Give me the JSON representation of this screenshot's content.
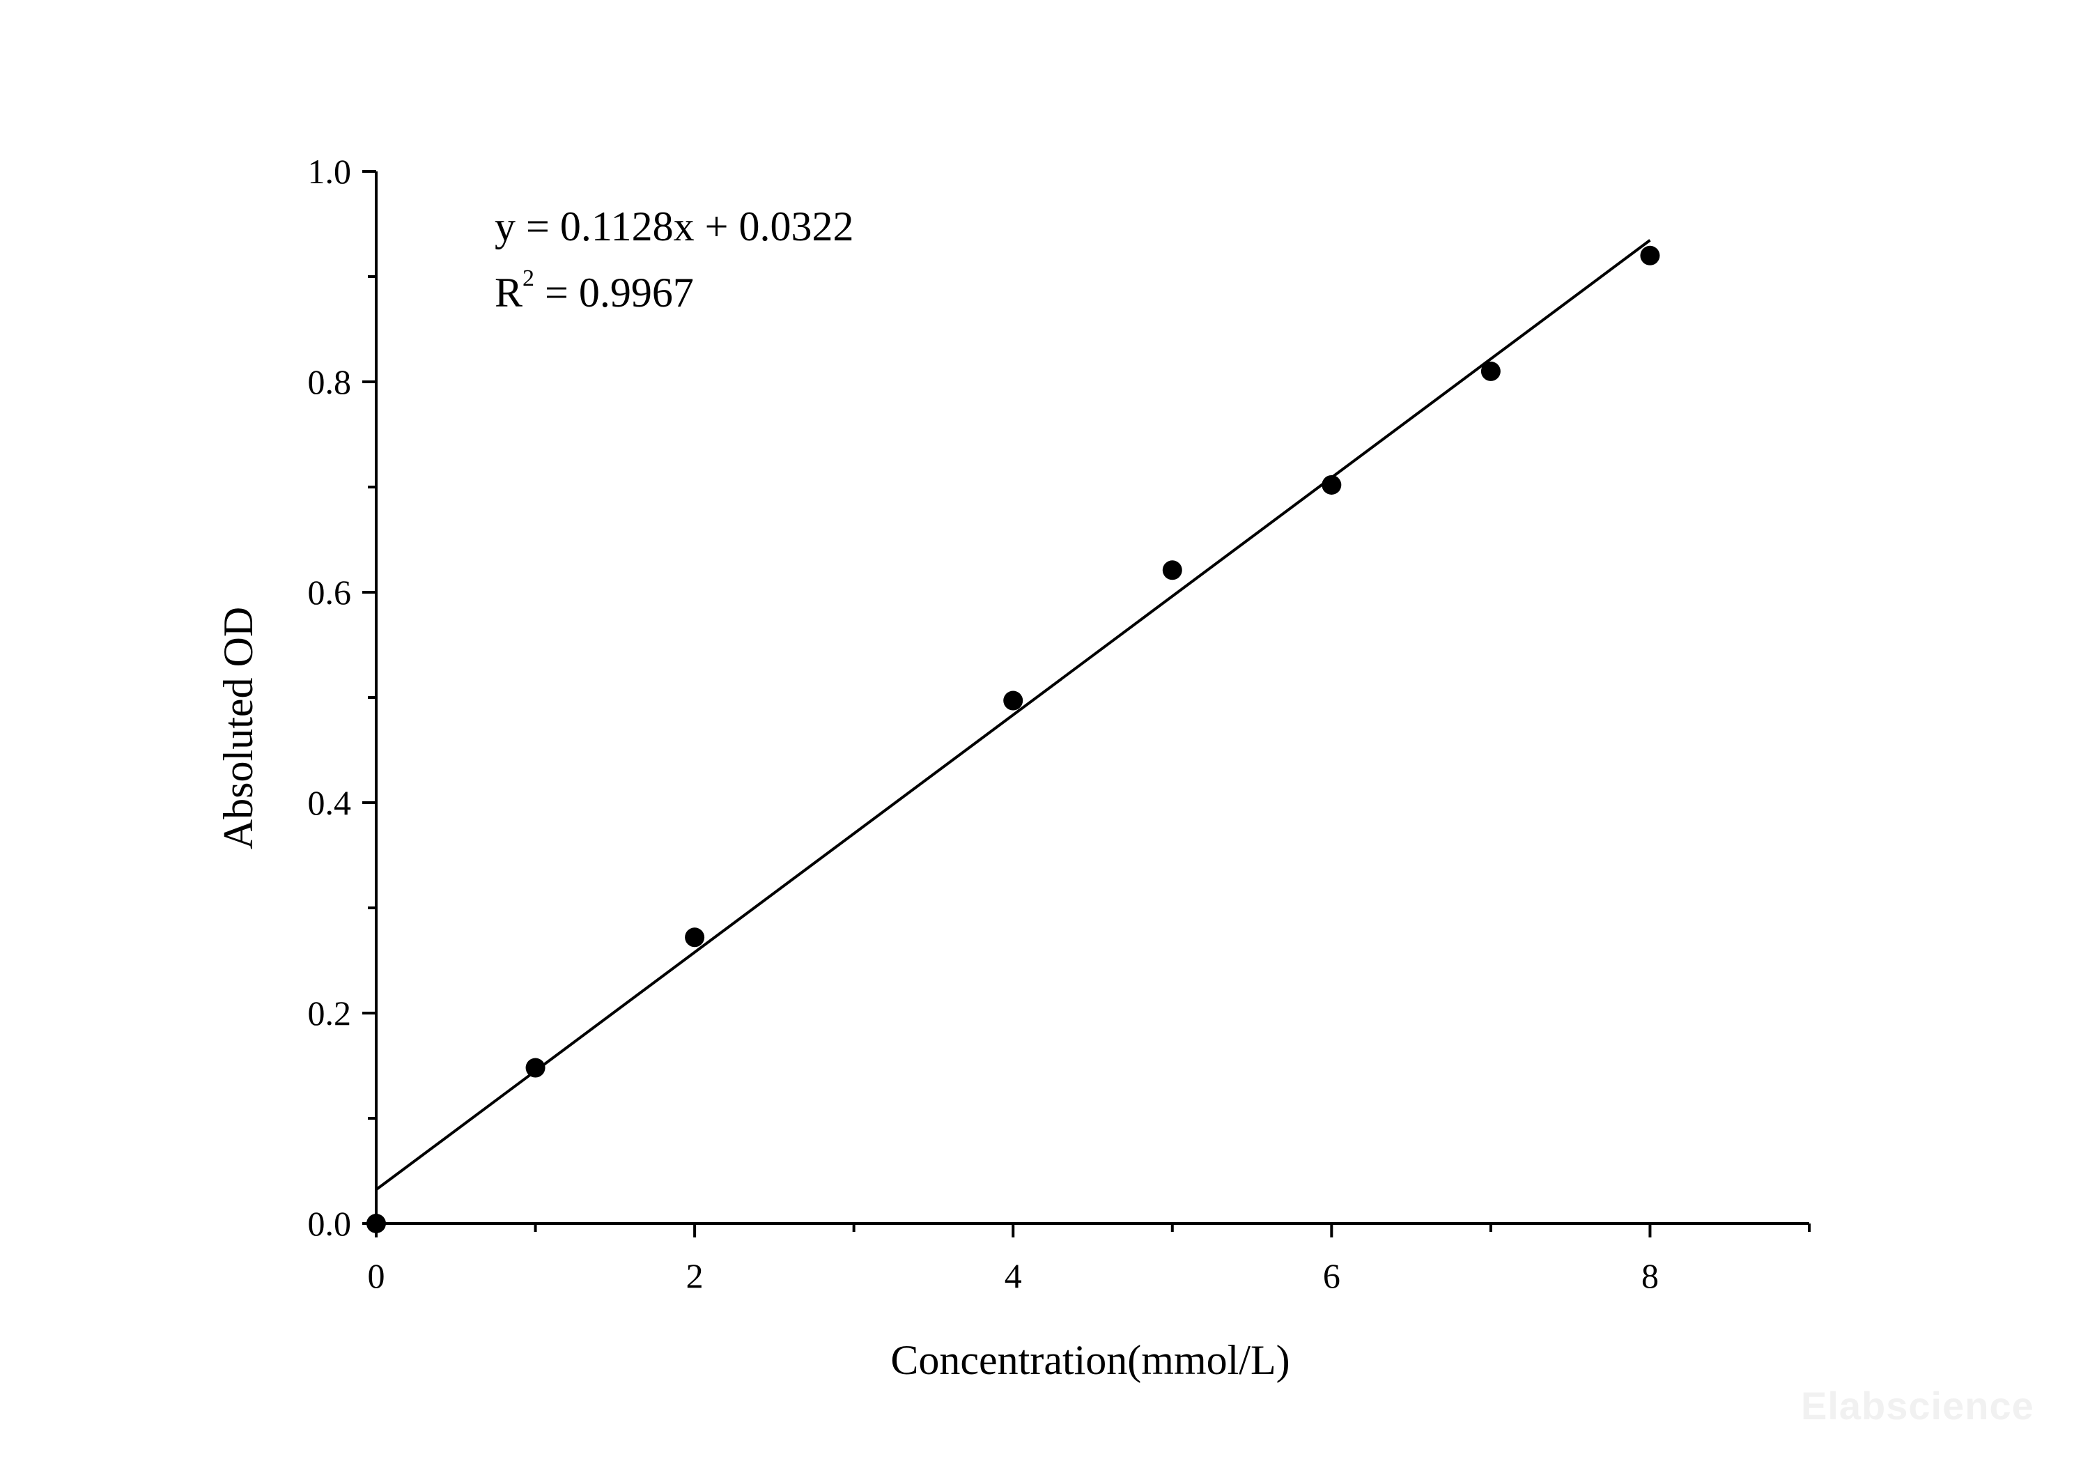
{
  "chart_data": {
    "type": "scatter",
    "xlabel": "Concentration(mmol/L)",
    "ylabel": "Absoluted OD",
    "xlim": [
      0,
      9
    ],
    "ylim": [
      0,
      1.0
    ],
    "x_ticks": [
      "0",
      "2",
      "4",
      "6",
      "8"
    ],
    "y_ticks": [
      "0.0",
      "0.2",
      "0.4",
      "0.6",
      "0.8",
      "1.0"
    ],
    "grid": false,
    "legend": "none",
    "series": [
      {
        "x": [
          0,
          1,
          2,
          4,
          5,
          6,
          7,
          8
        ],
        "y": [
          0.0,
          0.148,
          0.272,
          0.497,
          0.621,
          0.702,
          0.81,
          0.92
        ]
      }
    ],
    "trendline": {
      "slope": 0.1128,
      "intercept": 0.0322,
      "x_range": [
        0,
        8
      ]
    },
    "annotations": {
      "equation": "y = 0.1128x + 0.0322",
      "r2_prefix": "R",
      "r2_exponent": "2",
      "r2_value": " = 0.9967"
    }
  },
  "watermark": "Elabscience"
}
